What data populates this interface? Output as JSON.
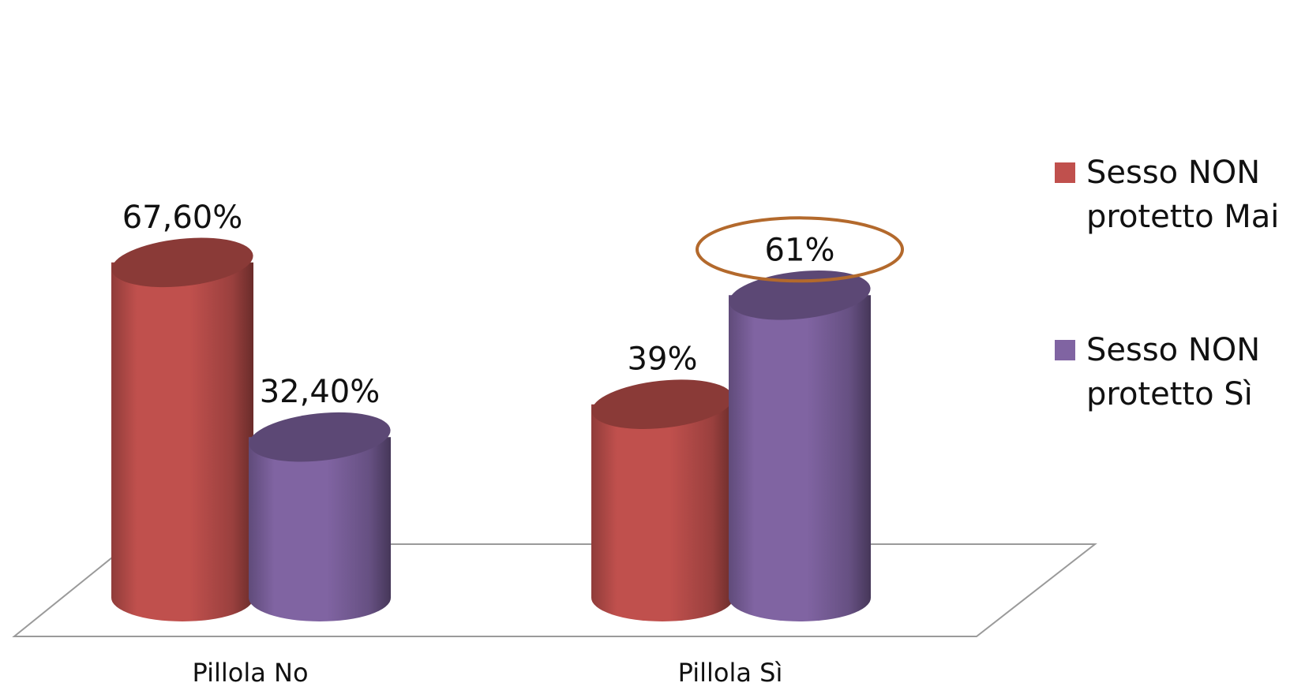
{
  "chart_data": {
    "type": "bar",
    "title": "",
    "xlabel": "",
    "ylabel": "",
    "categories": [
      "Pillola No",
      "Pillola Sì"
    ],
    "series": [
      {
        "name": "Sesso NON protetto Mai",
        "values": [
          67.6,
          39
        ],
        "labels": [
          "67,60%",
          "39%"
        ],
        "color": "#c0504d"
      },
      {
        "name": "Sesso NON protetto Sì",
        "values": [
          32.4,
          61
        ],
        "labels": [
          "32,40%",
          "61%"
        ],
        "color": "#8064a2"
      }
    ],
    "ylim": [
      0,
      100
    ],
    "unit": "%",
    "grid": false,
    "legend_position": "right",
    "legend": [
      {
        "line1": "Sesso NON",
        "line2": "protetto Mai",
        "color": "#c0504d"
      },
      {
        "line1": "Sesso NON",
        "line2": "protetto Sì",
        "color": "#8064a2"
      }
    ],
    "annotation": {
      "type": "ellipse-highlight",
      "target_label": "61%",
      "color": "#b3692c"
    }
  }
}
